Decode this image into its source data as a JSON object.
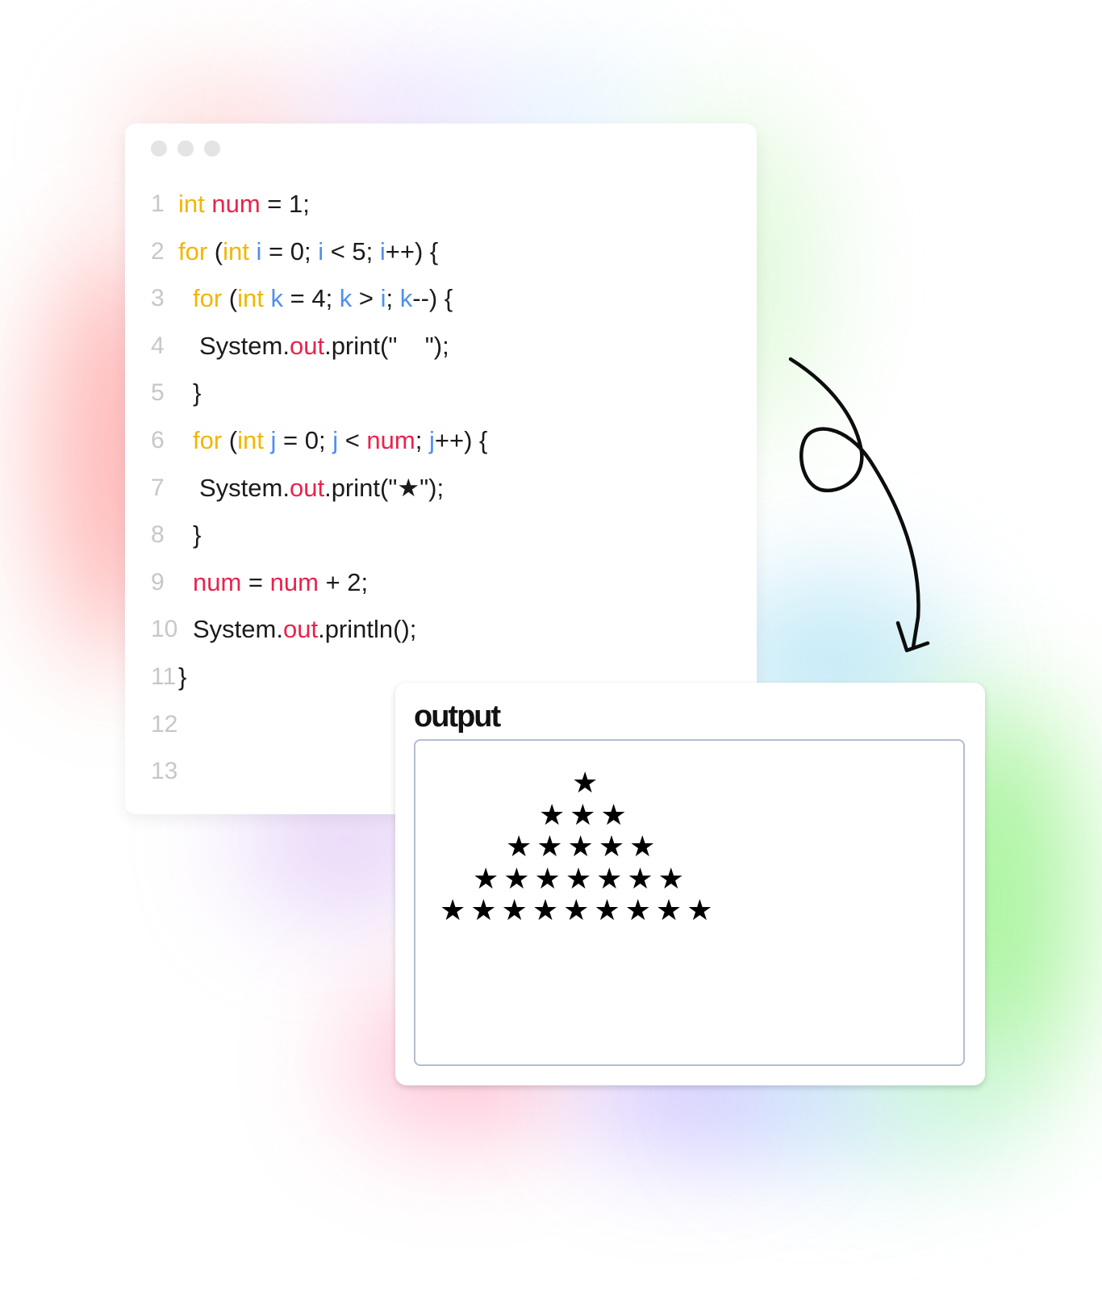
{
  "code_editor": {
    "window_dots": [
      "close",
      "minimize",
      "maximize"
    ],
    "lines": [
      {
        "number": "1",
        "tokens": [
          {
            "t": "int",
            "c": "ty"
          },
          {
            "t": " ",
            "c": "pl"
          },
          {
            "t": "num",
            "c": "var"
          },
          {
            "t": " = 1;",
            "c": "pl"
          }
        ]
      },
      {
        "number": "2",
        "tokens": [
          {
            "t": "for",
            "c": "kw"
          },
          {
            "t": " (",
            "c": "pl"
          },
          {
            "t": "int",
            "c": "ty"
          },
          {
            "t": " ",
            "c": "pl"
          },
          {
            "t": "i",
            "c": "it"
          },
          {
            "t": " = 0; ",
            "c": "pl"
          },
          {
            "t": "i",
            "c": "it"
          },
          {
            "t": " < 5; ",
            "c": "pl"
          },
          {
            "t": "i",
            "c": "it"
          },
          {
            "t": "++) {",
            "c": "pl"
          }
        ]
      },
      {
        "number": "3",
        "tokens": [
          {
            "t": "for",
            "c": "kw"
          },
          {
            "t": " (",
            "c": "pl"
          },
          {
            "t": "int",
            "c": "ty"
          },
          {
            "t": " ",
            "c": "pl"
          },
          {
            "t": "k",
            "c": "it"
          },
          {
            "t": " = 4; ",
            "c": "pl"
          },
          {
            "t": "k",
            "c": "it"
          },
          {
            "t": " > ",
            "c": "pl"
          },
          {
            "t": "i",
            "c": "it"
          },
          {
            "t": "; ",
            "c": "pl"
          },
          {
            "t": "k",
            "c": "it"
          },
          {
            "t": "--) {",
            "c": "pl"
          }
        ]
      },
      {
        "number": "4",
        "tokens": [
          {
            "t": "System.",
            "c": "pl"
          },
          {
            "t": "out",
            "c": "var"
          },
          {
            "t": ".print(\"    \");",
            "c": "pl"
          }
        ]
      },
      {
        "number": "5",
        "tokens": [
          {
            "t": "}",
            "c": "pl"
          }
        ]
      },
      {
        "number": "6",
        "tokens": [
          {
            "t": "for",
            "c": "kw"
          },
          {
            "t": " (",
            "c": "pl"
          },
          {
            "t": "int",
            "c": "ty"
          },
          {
            "t": " ",
            "c": "pl"
          },
          {
            "t": "j",
            "c": "it"
          },
          {
            "t": " = 0; ",
            "c": "pl"
          },
          {
            "t": "j",
            "c": "it"
          },
          {
            "t": " < ",
            "c": "pl"
          },
          {
            "t": "num",
            "c": "var"
          },
          {
            "t": "; ",
            "c": "pl"
          },
          {
            "t": "j",
            "c": "it"
          },
          {
            "t": "++) {",
            "c": "pl"
          }
        ]
      },
      {
        "number": "7",
        "tokens": [
          {
            "t": "System.",
            "c": "pl"
          },
          {
            "t": "out",
            "c": "var"
          },
          {
            "t": ".print(\"★\");",
            "c": "pl"
          }
        ]
      },
      {
        "number": "8",
        "tokens": [
          {
            "t": "}",
            "c": "pl"
          }
        ]
      },
      {
        "number": "9",
        "tokens": [
          {
            "t": "num",
            "c": "var"
          },
          {
            "t": " = ",
            "c": "pl"
          },
          {
            "t": "num",
            "c": "var"
          },
          {
            "t": " + 2;",
            "c": "pl"
          }
        ]
      },
      {
        "number": "10",
        "tokens": [
          {
            "t": "System.",
            "c": "pl"
          },
          {
            "t": "out",
            "c": "var"
          },
          {
            "t": ".println();",
            "c": "pl"
          }
        ]
      },
      {
        "number": "11",
        "tokens": [
          {
            "t": "}",
            "c": "pl"
          }
        ]
      },
      {
        "number": "12",
        "tokens": []
      },
      {
        "number": "13",
        "tokens": []
      }
    ]
  },
  "arrow": {
    "icon": "hand-drawn-loop-arrow-icon"
  },
  "output": {
    "title": "output",
    "rows": [
      "★",
      "★★★",
      "★★★★★",
      "★★★★★★★",
      "★★★★★★★★★"
    ]
  },
  "colors": {
    "keyword": "#f2b600",
    "variable": "#e8244c",
    "iterator": "#4f8ff0",
    "text": "#1b1b1b",
    "line_number": "#c7c7c7"
  }
}
